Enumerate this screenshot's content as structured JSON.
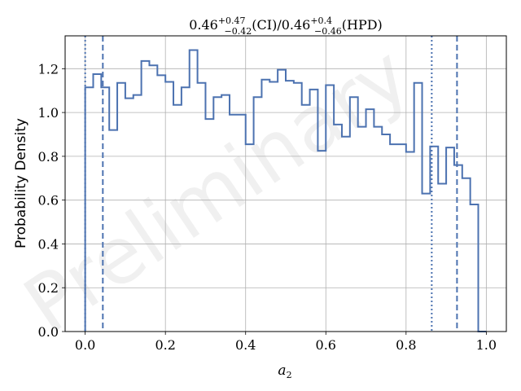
{
  "chart_data": {
    "type": "histogram-step",
    "title": {
      "value": "0.46",
      "ci_sup": "+0.47",
      "ci_sub": "−0.42",
      "ci_label": "(CI)/",
      "value2": "0.46",
      "hpd_sup": "+0.4",
      "hpd_sub": "−0.46",
      "hpd_label": "(HPD)"
    },
    "xlabel": {
      "base": "a",
      "sub": "2"
    },
    "ylabel": "Probability Density",
    "watermark": "Preliminary",
    "xlim": [
      -0.05,
      1.05
    ],
    "ylim": [
      0.0,
      1.35
    ],
    "xticks": [
      0.0,
      0.2,
      0.4,
      0.6,
      0.8,
      1.0
    ],
    "xtick_labels": [
      "0.0",
      "0.2",
      "0.4",
      "0.6",
      "0.8",
      "1.0"
    ],
    "yticks": [
      0.0,
      0.2,
      0.4,
      0.6,
      0.8,
      1.0,
      1.2
    ],
    "ytick_labels": [
      "0.0",
      "0.2",
      "0.4",
      "0.6",
      "0.8",
      "1.0",
      "1.2"
    ],
    "grid": true,
    "series_color": "#4c72b0",
    "bin_edges": [
      0.0,
      0.02,
      0.04,
      0.06,
      0.08,
      0.1,
      0.12,
      0.14,
      0.16,
      0.18,
      0.2,
      0.22,
      0.24,
      0.26,
      0.28,
      0.3,
      0.32,
      0.34,
      0.36,
      0.38,
      0.4,
      0.42,
      0.44,
      0.46,
      0.48,
      0.5,
      0.52,
      0.54,
      0.56,
      0.58,
      0.6,
      0.62,
      0.64,
      0.66,
      0.68,
      0.7,
      0.72,
      0.74,
      0.76,
      0.78,
      0.8,
      0.82,
      0.84,
      0.86,
      0.88,
      0.9,
      0.92,
      0.94,
      0.96,
      0.98,
      1.0
    ],
    "densities": [
      1.115,
      1.175,
      1.115,
      0.92,
      1.135,
      1.065,
      1.08,
      1.235,
      1.215,
      1.17,
      1.14,
      1.035,
      1.115,
      1.285,
      1.135,
      0.97,
      1.07,
      1.08,
      0.99,
      0.99,
      0.855,
      1.07,
      1.15,
      1.14,
      1.195,
      1.145,
      1.135,
      1.035,
      1.105,
      0.825,
      1.125,
      0.945,
      0.89,
      1.07,
      0.935,
      1.015,
      0.935,
      0.9,
      0.855,
      0.855,
      0.82,
      1.135,
      0.63,
      0.845,
      0.675,
      0.84,
      0.76,
      0.7,
      0.58,
      0.0
    ],
    "dashed_lines": [
      0.044,
      0.927
    ],
    "dotted_lines": [
      0.0,
      0.864
    ]
  }
}
